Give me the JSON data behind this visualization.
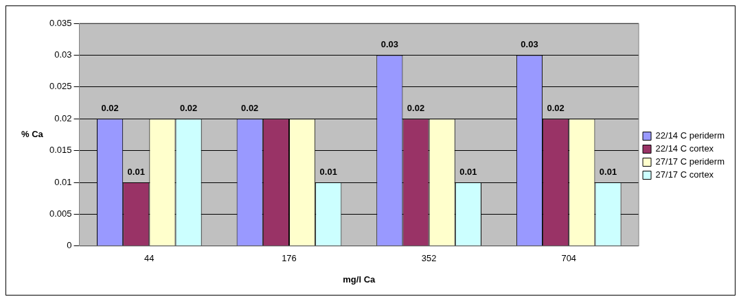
{
  "chart_data": {
    "type": "bar",
    "xlabel": "mg/l Ca",
    "ylabel": "% Ca",
    "categories": [
      "44",
      "176",
      "352",
      "704"
    ],
    "series": [
      {
        "name": "22/14 C periderm",
        "color": "#9999ff",
        "values": [
          0.02,
          0.02,
          0.03,
          0.03
        ],
        "value_labels": [
          "0.02",
          "0.02",
          "0.03",
          "0.03"
        ]
      },
      {
        "name": "22/14 C cortex",
        "color": "#993366",
        "values": [
          0.01,
          0.02,
          0.02,
          0.02
        ],
        "value_labels": [
          "0.01",
          null,
          "0.02",
          "0.02"
        ]
      },
      {
        "name": "27/17 C periderm",
        "color": "#ffffcc",
        "values": [
          0.02,
          0.02,
          0.02,
          0.02
        ],
        "value_labels": [
          null,
          null,
          null,
          null
        ]
      },
      {
        "name": "27/17 C cortex",
        "color": "#ccffff",
        "values": [
          0.02,
          0.01,
          0.01,
          0.01
        ],
        "value_labels": [
          "0.02",
          "0.01",
          "0.01",
          "0.01"
        ]
      }
    ],
    "ylim": [
      0,
      0.035
    ],
    "yticks": [
      0,
      0.005,
      0.01,
      0.015,
      0.02,
      0.025,
      0.03,
      0.035
    ],
    "grid": "y",
    "legend": "right"
  }
}
